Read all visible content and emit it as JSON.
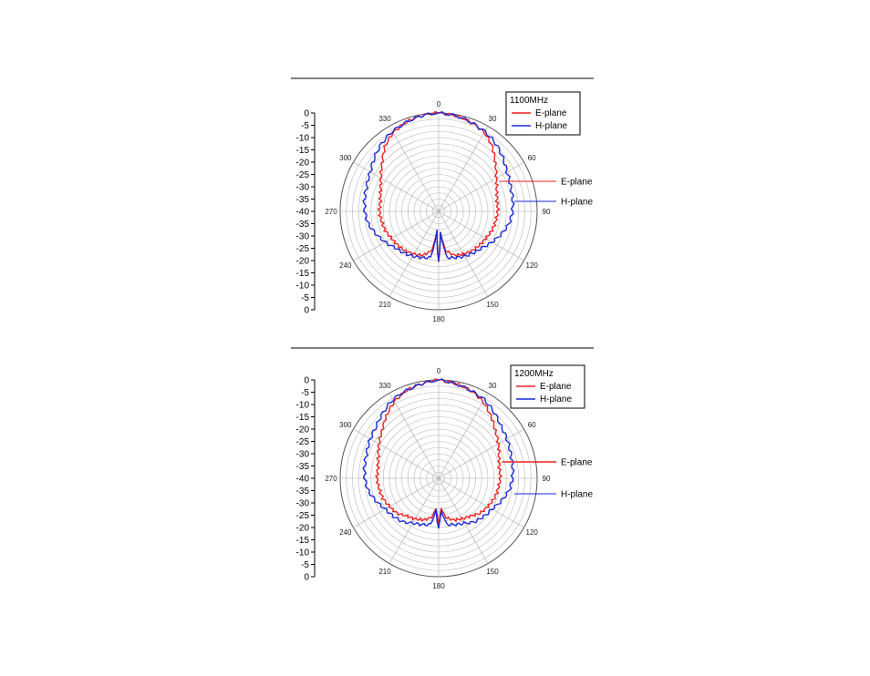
{
  "chart_data": [
    {
      "type": "polar-line",
      "title": "",
      "theta_ticks": [
        "0",
        "30",
        "60",
        "90",
        "120",
        "150",
        "180",
        "210",
        "240",
        "270",
        "300",
        "330"
      ],
      "r_ticks": [
        "0",
        "-5",
        "-10",
        "-15",
        "-20",
        "-25",
        "-30",
        "-35",
        "-40",
        "-35",
        "-30",
        "-25",
        "-20",
        "-15",
        "-10",
        "-5",
        "0"
      ],
      "rlim": [
        -40,
        0
      ],
      "grid": true,
      "legend": {
        "title": "1100MHz",
        "entries": [
          "E-plane",
          "H-plane"
        ],
        "placement": "top-right"
      },
      "annotations": [
        "E-plane",
        "H-plane"
      ],
      "series": [
        {
          "name": "E-plane",
          "color": "#ee2222",
          "theta": [
            0,
            10,
            20,
            30,
            40,
            50,
            60,
            70,
            80,
            90,
            100,
            110,
            120,
            130,
            140,
            150,
            160,
            170,
            175,
            180,
            185,
            190,
            200,
            210,
            220,
            230,
            240,
            250,
            260,
            270,
            280,
            290,
            300,
            310,
            320,
            330,
            340,
            350
          ],
          "r": [
            0,
            -0.5,
            -1.5,
            -3,
            -6,
            -10,
            -13,
            -15,
            -16,
            -16,
            -16.5,
            -17,
            -18,
            -18.5,
            -19,
            -20,
            -21,
            -24,
            -32,
            -20,
            -32,
            -24,
            -21,
            -20,
            -19,
            -18.5,
            -18,
            -17,
            -16.5,
            -16,
            -16,
            -15,
            -13,
            -10,
            -6,
            -3,
            -1.5,
            -0.5
          ]
        },
        {
          "name": "H-plane",
          "color": "#1a2ad8",
          "theta": [
            0,
            10,
            20,
            30,
            40,
            50,
            60,
            70,
            80,
            90,
            100,
            110,
            120,
            130,
            140,
            150,
            160,
            170,
            175,
            180,
            185,
            190,
            200,
            210,
            220,
            230,
            240,
            250,
            260,
            270,
            280,
            290,
            300,
            310,
            320,
            330,
            340,
            350
          ],
          "r": [
            0,
            -0.5,
            -1.5,
            -2.5,
            -4,
            -6,
            -8,
            -9,
            -9.5,
            -10,
            -11,
            -13,
            -15,
            -17,
            -18,
            -19,
            -20,
            -21,
            -32,
            -20,
            -32,
            -21,
            -20,
            -19,
            -18,
            -17,
            -15,
            -13,
            -11,
            -10,
            -9.5,
            -9,
            -8,
            -6,
            -4,
            -2.5,
            -1.5,
            -0.5
          ]
        }
      ]
    },
    {
      "type": "polar-line",
      "title": "",
      "theta_ticks": [
        "0",
        "30",
        "60",
        "90",
        "120",
        "150",
        "180",
        "210",
        "240",
        "270",
        "300",
        "330"
      ],
      "r_ticks": [
        "0",
        "-5",
        "-10",
        "-15",
        "-20",
        "-25",
        "-30",
        "-35",
        "-40",
        "-35",
        "-30",
        "-25",
        "-20",
        "-15",
        "-10",
        "-5",
        "0"
      ],
      "rlim": [
        -40,
        0
      ],
      "grid": true,
      "legend": {
        "title": "1200MHz",
        "entries": [
          "E-plane",
          "H-plane"
        ],
        "placement": "top-right"
      },
      "annotations": [
        "E-plane",
        "H-plane"
      ],
      "series": [
        {
          "name": "E-plane",
          "color": "#ee2222",
          "theta": [
            0,
            10,
            20,
            30,
            40,
            50,
            60,
            70,
            80,
            90,
            100,
            110,
            120,
            130,
            140,
            150,
            160,
            170,
            175,
            180,
            185,
            190,
            200,
            210,
            220,
            230,
            240,
            250,
            260,
            270,
            280,
            290,
            300,
            310,
            320,
            330,
            340,
            350
          ],
          "r": [
            0,
            -1,
            -2,
            -4,
            -7,
            -10,
            -12,
            -14,
            -15,
            -15,
            -15.5,
            -16,
            -17,
            -18,
            -20,
            -21,
            -22,
            -24,
            -28,
            -22,
            -28,
            -24,
            -22,
            -21,
            -20,
            -18,
            -17,
            -16,
            -15.5,
            -15,
            -15,
            -14,
            -12,
            -10,
            -7,
            -4,
            -2,
            -1
          ]
        },
        {
          "name": "H-plane",
          "color": "#1a2ad8",
          "theta": [
            0,
            10,
            20,
            30,
            40,
            50,
            60,
            70,
            80,
            90,
            100,
            110,
            120,
            130,
            140,
            150,
            160,
            170,
            175,
            180,
            185,
            190,
            200,
            210,
            220,
            230,
            240,
            250,
            260,
            270,
            280,
            290,
            300,
            310,
            320,
            330,
            340,
            350
          ],
          "r": [
            0,
            -1,
            -2,
            -3,
            -5,
            -7,
            -8,
            -9,
            -9.5,
            -10,
            -11,
            -13,
            -15,
            -16,
            -17,
            -19,
            -20,
            -21,
            -27,
            -20,
            -27,
            -21,
            -20,
            -19,
            -17,
            -16,
            -15,
            -13,
            -11,
            -10,
            -9.5,
            -9,
            -8,
            -7,
            -5,
            -3,
            -2,
            -1
          ]
        }
      ]
    }
  ]
}
